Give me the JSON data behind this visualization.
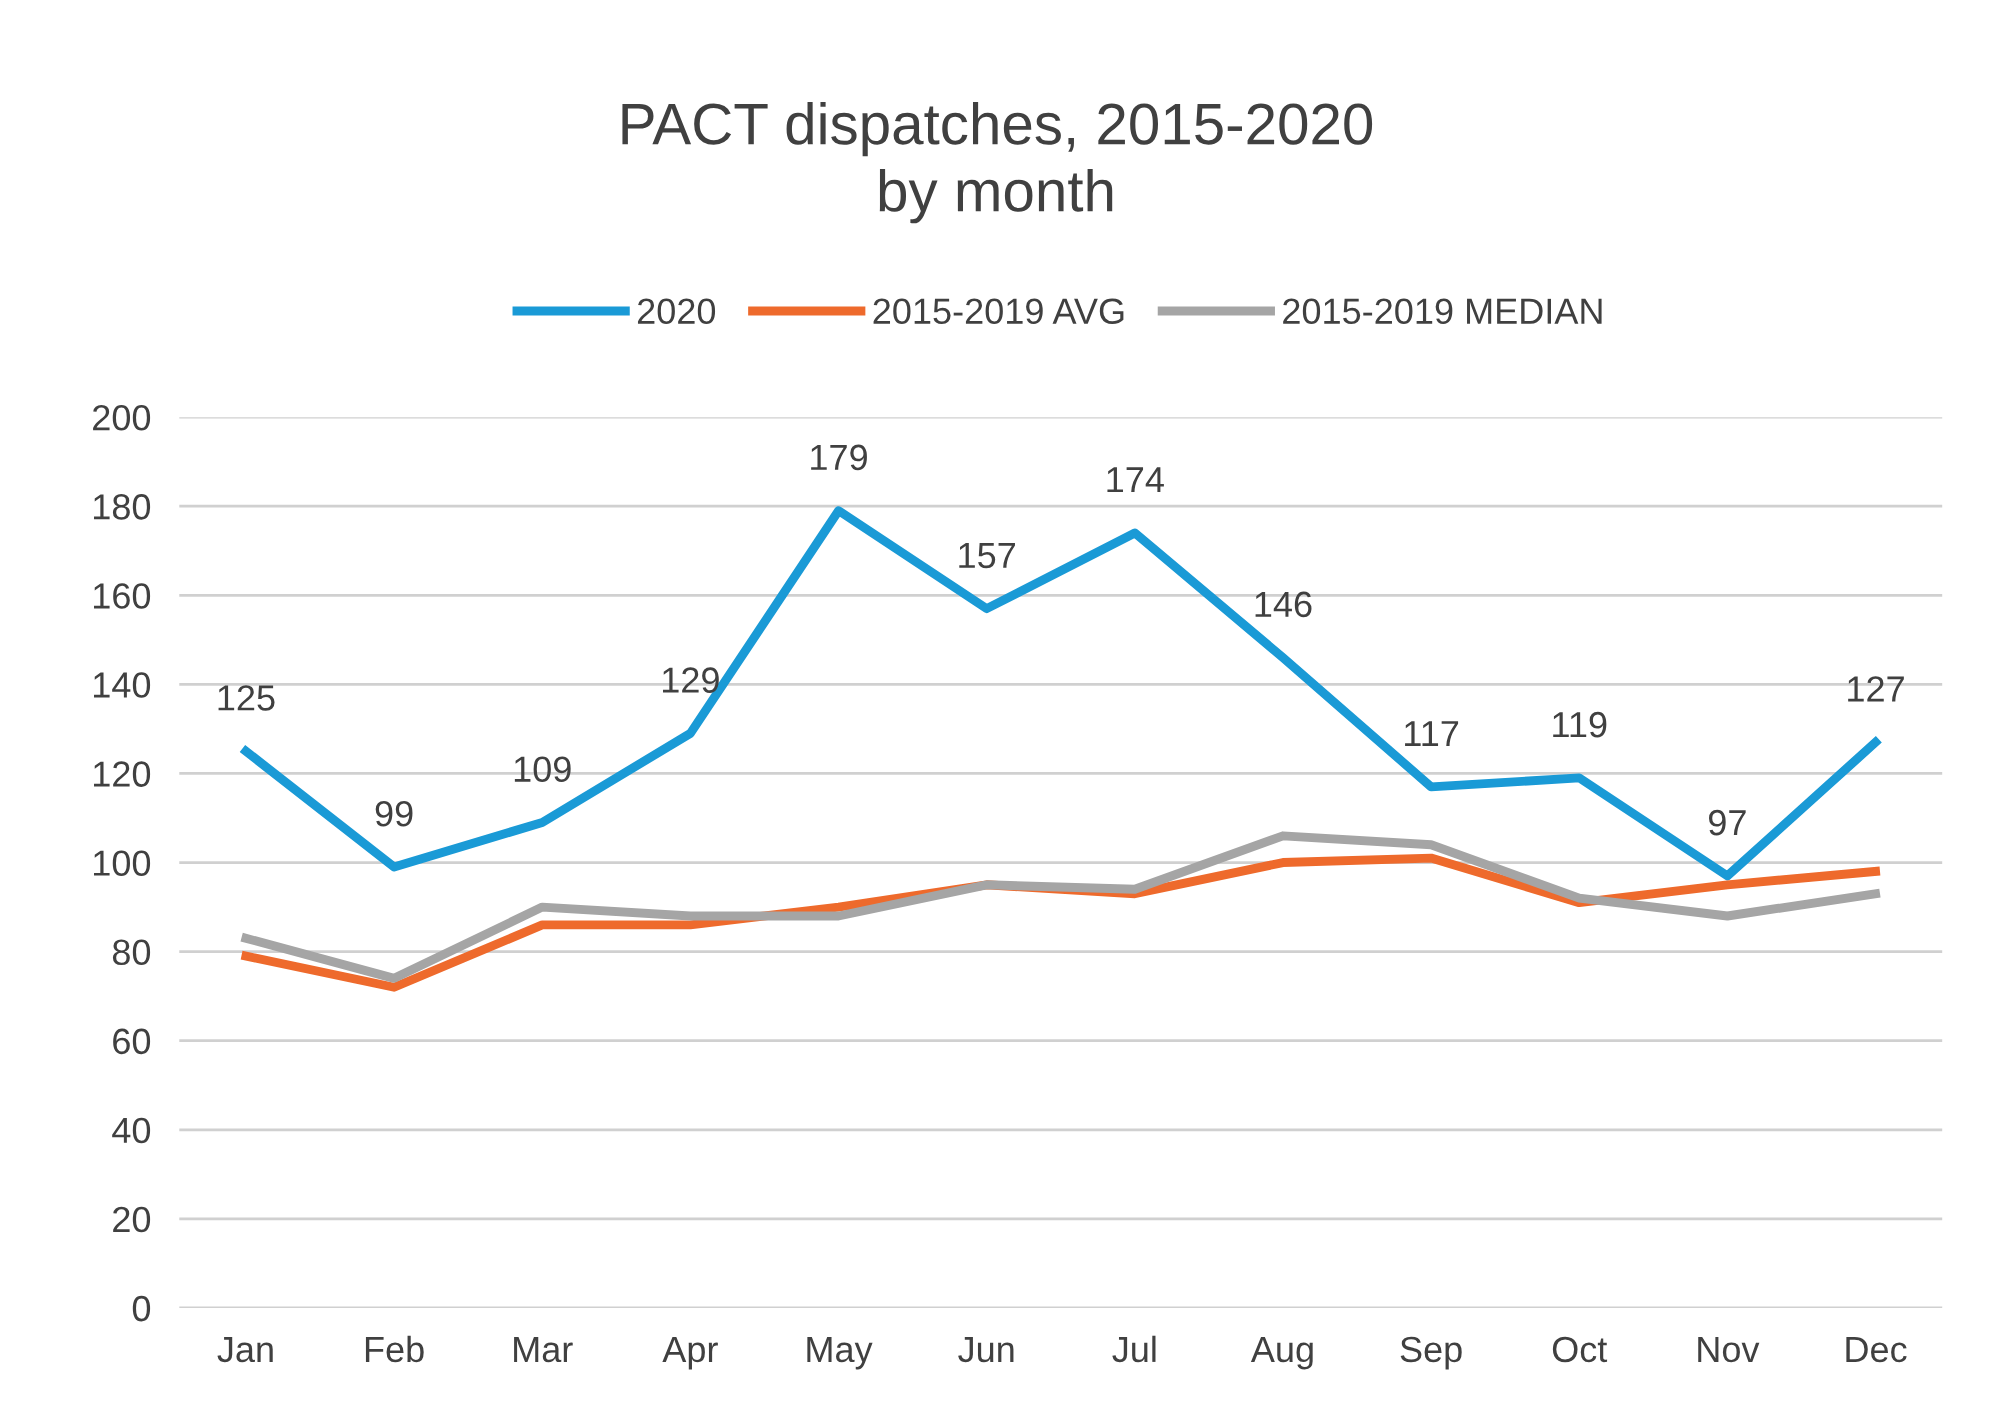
{
  "chart_data": {
    "type": "line",
    "title": "PACT dispatches, 2015-2020\nby month",
    "categories": [
      "Jan",
      "Feb",
      "Mar",
      "Apr",
      "May",
      "Jun",
      "Jul",
      "Aug",
      "Sep",
      "Oct",
      "Nov",
      "Dec"
    ],
    "series": [
      {
        "name": "2020",
        "color": "#1a9ad6",
        "values": [
          125,
          99,
          109,
          129,
          179,
          157,
          174,
          146,
          117,
          119,
          97,
          127
        ],
        "data_labels": true
      },
      {
        "name": "2015-2019 AVG",
        "color": "#ee6a2c",
        "values": [
          79,
          72,
          86,
          86,
          90,
          95,
          93,
          100,
          101,
          91,
          95,
          98
        ]
      },
      {
        "name": "2015-2019 MEDIAN",
        "color": "#a5a5a5",
        "values": [
          83,
          74,
          90,
          88,
          88,
          95,
          94,
          106,
          104,
          92,
          88,
          93
        ]
      }
    ],
    "ylim": [
      0,
      200
    ],
    "yticks": [
      0,
      20,
      40,
      60,
      80,
      100,
      120,
      140,
      160,
      180,
      200
    ],
    "grid": "y",
    "legend": "top",
    "marker": "none",
    "line_style": "solid"
  }
}
